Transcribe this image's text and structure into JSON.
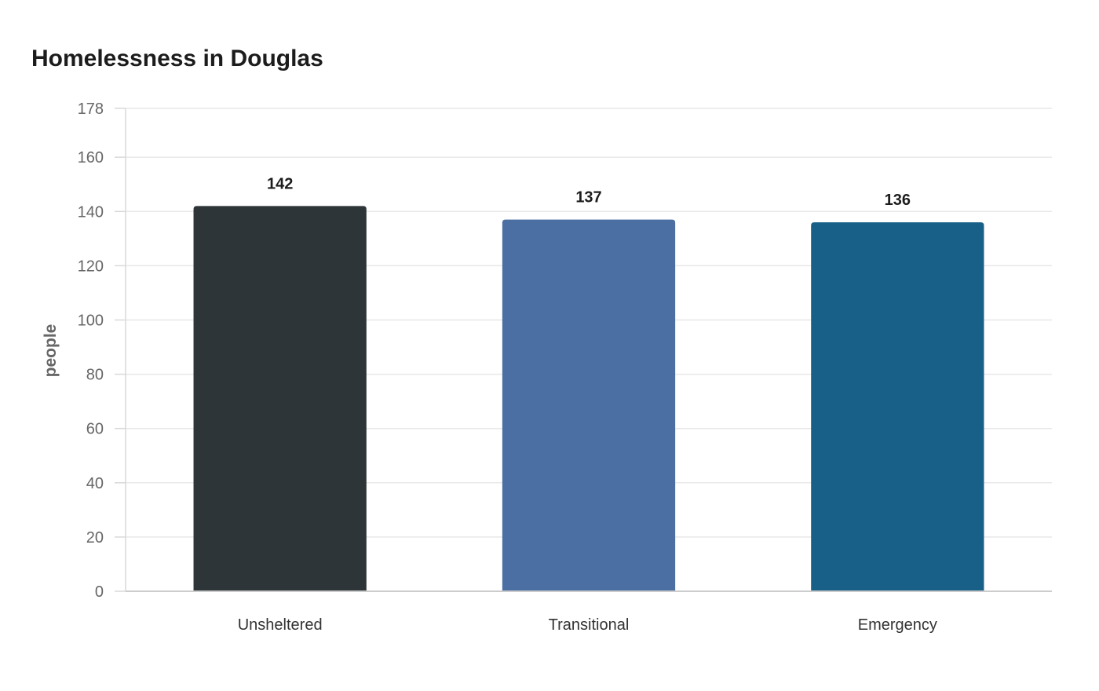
{
  "chart_data": {
    "type": "bar",
    "title": "Homelessness in Douglas",
    "xlabel": "",
    "ylabel": "people",
    "categories": [
      "Unsheltered",
      "Transitional",
      "Emergency"
    ],
    "values": [
      142,
      137,
      136
    ],
    "colors": [
      "#2d3538",
      "#4b6ea3",
      "#186087"
    ],
    "ylim": [
      0,
      178
    ],
    "yticks": [
      0,
      20,
      40,
      60,
      80,
      100,
      120,
      140,
      160,
      178
    ],
    "grid": true,
    "legend": "none"
  }
}
